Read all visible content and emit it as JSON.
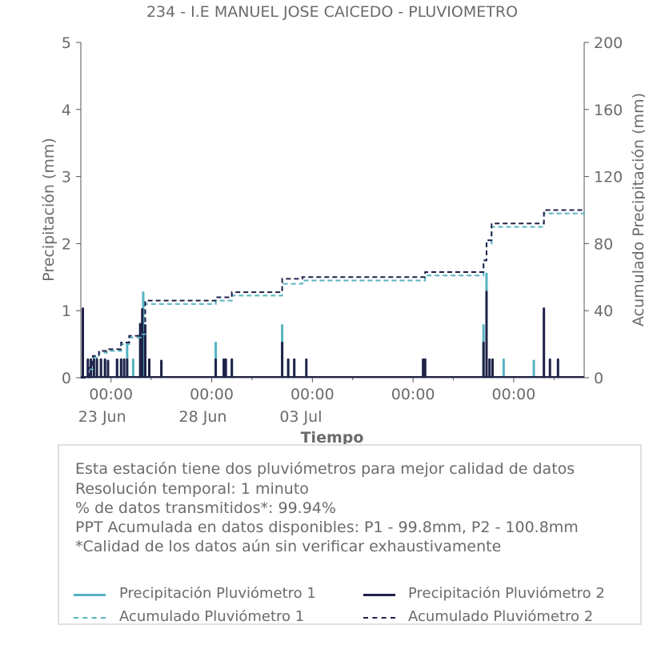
{
  "chart_data": {
    "type": "line",
    "title": "234 - I.E MANUEL JOSE CAICEDO - PLUVIOMETRO",
    "xlabel": "Tiempo",
    "ylabel": "Precipitación (mm)",
    "ylabel_right": "Acumulado Precipitación (mm)",
    "x_ticks": [
      {
        "day": 1.5,
        "label": "00:00",
        "sublabel": "23 Jun"
      },
      {
        "day": 6.5,
        "label": "00:00",
        "sublabel": "28 Jun"
      },
      {
        "day": 11.5,
        "label": "00:00",
        "sublabel": "03 Jul"
      },
      {
        "day": 16.5,
        "label": "00:00",
        "sublabel": ""
      },
      {
        "day": 21.5,
        "label": "00:00",
        "sublabel": ""
      }
    ],
    "xlim_days": [
      0,
      25
    ],
    "ylim": [
      0,
      5
    ],
    "ylim_right": [
      0,
      200
    ],
    "y_ticks": [
      0,
      1,
      2,
      3,
      4,
      5
    ],
    "y_ticks_right": [
      0,
      40,
      80,
      120,
      160,
      200
    ],
    "grid": false,
    "series": [
      {
        "name": "Precipitación Pluviómetro 1",
        "color": "#56b4c2",
        "style": "bars",
        "points": [
          [
            0.1,
            1.0
          ],
          [
            0.35,
            0.25
          ],
          [
            0.5,
            0.27
          ],
          [
            0.65,
            0.27
          ],
          [
            0.8,
            0.27
          ],
          [
            1.0,
            0.25
          ],
          [
            1.2,
            0.27
          ],
          [
            1.35,
            0.25
          ],
          [
            1.8,
            0.27
          ],
          [
            2.0,
            0.27
          ],
          [
            2.15,
            0.27
          ],
          [
            2.3,
            0.5
          ],
          [
            2.6,
            0.27
          ],
          [
            2.95,
            0.8
          ],
          [
            3.1,
            1.27
          ],
          [
            3.2,
            0.27
          ],
          [
            3.4,
            0.27
          ],
          [
            4.0,
            0.25
          ],
          [
            6.7,
            0.52
          ],
          [
            7.1,
            0.27
          ],
          [
            7.2,
            0.27
          ],
          [
            7.5,
            0.27
          ],
          [
            10.0,
            0.78
          ],
          [
            10.3,
            0.27
          ],
          [
            10.6,
            0.27
          ],
          [
            17.0,
            0.27
          ],
          [
            17.1,
            0.27
          ],
          [
            20.0,
            0.78
          ],
          [
            20.15,
            1.55
          ],
          [
            20.3,
            0.27
          ],
          [
            20.45,
            0.27
          ],
          [
            21.0,
            0.27
          ],
          [
            22.5,
            0.25
          ]
        ]
      },
      {
        "name": "Precipitación Pluviómetro 2",
        "color": "#1f2248",
        "style": "bars",
        "points": [
          [
            0.1,
            1.03
          ],
          [
            0.35,
            0.27
          ],
          [
            0.5,
            0.27
          ],
          [
            0.65,
            0.27
          ],
          [
            0.8,
            0.27
          ],
          [
            1.0,
            0.27
          ],
          [
            1.2,
            0.27
          ],
          [
            1.35,
            0.25
          ],
          [
            1.8,
            0.27
          ],
          [
            2.0,
            0.27
          ],
          [
            2.15,
            0.27
          ],
          [
            2.3,
            0.27
          ],
          [
            2.95,
            0.8
          ],
          [
            3.05,
            1.02
          ],
          [
            3.2,
            0.78
          ],
          [
            3.4,
            0.27
          ],
          [
            4.0,
            0.25
          ],
          [
            6.7,
            0.27
          ],
          [
            7.1,
            0.27
          ],
          [
            7.2,
            0.27
          ],
          [
            7.5,
            0.27
          ],
          [
            10.0,
            0.52
          ],
          [
            10.3,
            0.27
          ],
          [
            10.6,
            0.27
          ],
          [
            11.2,
            0.27
          ],
          [
            17.0,
            0.27
          ],
          [
            17.1,
            0.27
          ],
          [
            20.0,
            0.52
          ],
          [
            20.15,
            1.28
          ],
          [
            20.3,
            0.27
          ],
          [
            20.45,
            0.27
          ],
          [
            23.0,
            1.03
          ],
          [
            23.3,
            0.27
          ],
          [
            23.7,
            0.27
          ]
        ]
      },
      {
        "name": "Acumulado Pluviómetro 1",
        "color": "#56b4c2",
        "style": "dashed-step",
        "axis": "right",
        "points": [
          [
            0,
            0
          ],
          [
            0.4,
            5
          ],
          [
            0.6,
            12
          ],
          [
            0.9,
            15
          ],
          [
            1.3,
            16
          ],
          [
            2.0,
            20
          ],
          [
            2.4,
            24
          ],
          [
            3.0,
            26
          ],
          [
            3.2,
            44
          ],
          [
            6.7,
            46
          ],
          [
            7.5,
            49
          ],
          [
            10.0,
            56
          ],
          [
            11.0,
            58
          ],
          [
            17.1,
            61
          ],
          [
            20.0,
            70
          ],
          [
            20.15,
            80
          ],
          [
            20.4,
            90
          ],
          [
            23.0,
            98
          ],
          [
            25.0,
            99.8
          ]
        ]
      },
      {
        "name": "Acumulado Pluviómetro 2",
        "color": "#1f2248",
        "style": "dashed-step",
        "axis": "right",
        "points": [
          [
            0,
            0
          ],
          [
            0.4,
            6
          ],
          [
            0.6,
            13
          ],
          [
            0.9,
            16
          ],
          [
            1.3,
            17
          ],
          [
            2.0,
            21
          ],
          [
            2.4,
            25
          ],
          [
            3.0,
            27
          ],
          [
            3.2,
            46
          ],
          [
            6.7,
            48
          ],
          [
            7.5,
            51
          ],
          [
            10.0,
            59
          ],
          [
            11.0,
            60
          ],
          [
            17.1,
            63
          ],
          [
            20.0,
            70
          ],
          [
            20.15,
            82
          ],
          [
            20.4,
            92
          ],
          [
            23.0,
            100
          ],
          [
            25.0,
            100.8
          ]
        ]
      }
    ],
    "legend_position": "bottom"
  },
  "info": {
    "lines": [
      "Esta estación tiene dos pluviómetros para mejor calidad de datos",
      "Resolución temporal: 1 minuto",
      "% de datos transmitidos*: 99.94%",
      "PPT Acumulada en datos disponibles: P1 - 99.8mm, P2 - 100.8mm",
      "*Calidad de los datos aún sin verificar exhaustivamente"
    ]
  },
  "legend": [
    {
      "label": "Precipitación Pluviómetro 1",
      "color": "#56b4c2",
      "dash": false
    },
    {
      "label": "Precipitación Pluviómetro 2",
      "color": "#1f2248",
      "dash": false
    },
    {
      "label": "Acumulado Pluviómetro 1",
      "color": "#56b4c2",
      "dash": true
    },
    {
      "label": "Acumulado Pluviómetro 2",
      "color": "#1f2248",
      "dash": true
    }
  ]
}
